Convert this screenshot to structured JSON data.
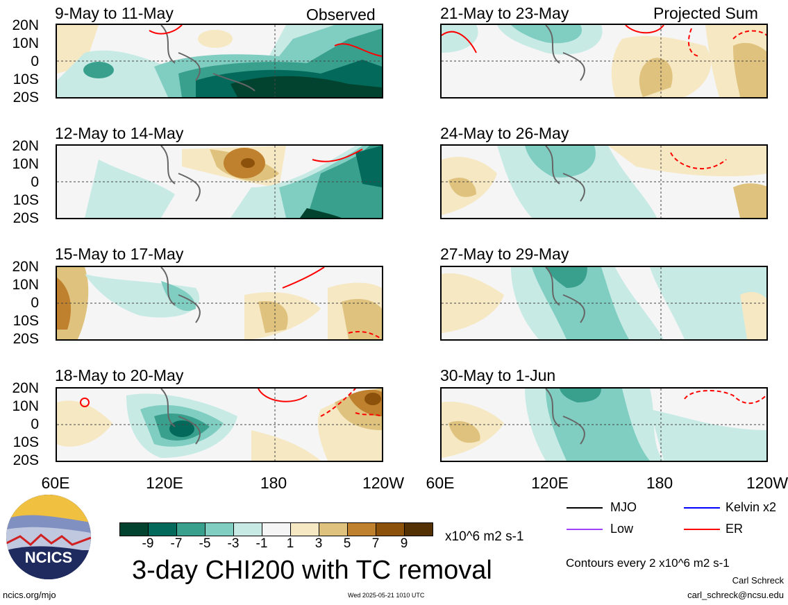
{
  "panels_left": [
    {
      "title": "9-May to 11-May",
      "tag": "Observed"
    },
    {
      "title": "12-May to 14-May",
      "tag": ""
    },
    {
      "title": "15-May to 17-May",
      "tag": ""
    },
    {
      "title": "18-May to 20-May",
      "tag": ""
    }
  ],
  "panels_right": [
    {
      "title": "21-May to 23-May",
      "tag": "Projected Sum"
    },
    {
      "title": "24-May to 26-May",
      "tag": ""
    },
    {
      "title": "27-May to 29-May",
      "tag": ""
    },
    {
      "title": "30-May to 1-Jun",
      "tag": ""
    }
  ],
  "y_axis_labels": [
    "20N",
    "10N",
    "0",
    "10S",
    "20S"
  ],
  "x_axis_labels": [
    "60E",
    "120E",
    "180",
    "120W"
  ],
  "legend": {
    "mjo": "MJO",
    "kelvin": "Kelvin x2",
    "low": "Low",
    "er": "ER",
    "colors": {
      "mjo": "#000000",
      "kelvin": "#0000ff",
      "low": "#a040ff",
      "er": "#ff0000"
    }
  },
  "colorbar": {
    "labels": [
      "-9",
      "-7",
      "-5",
      "-3",
      "-1",
      "1",
      "3",
      "5",
      "7",
      "9"
    ],
    "colors": [
      "#01432f",
      "#02695b",
      "#3aa08e",
      "#80cdc1",
      "#c7eae5",
      "#f5f5f5",
      "#f6e8c3",
      "#dfc27d",
      "#bf812d",
      "#8c510a",
      "#543005"
    ],
    "units": "x10^6 m2 s-1"
  },
  "main_title": "3-day CHI200 with TC removal",
  "contour_note": "Contours every 2 x10^6 m2 s-1",
  "author": "Carl Schreck",
  "email": "carl_schreck@ncsu.edu",
  "site": "ncics.org/mjo",
  "timestamp": "Wed 2025-05-21 1010 UTC",
  "logo_text": "NCICS"
}
